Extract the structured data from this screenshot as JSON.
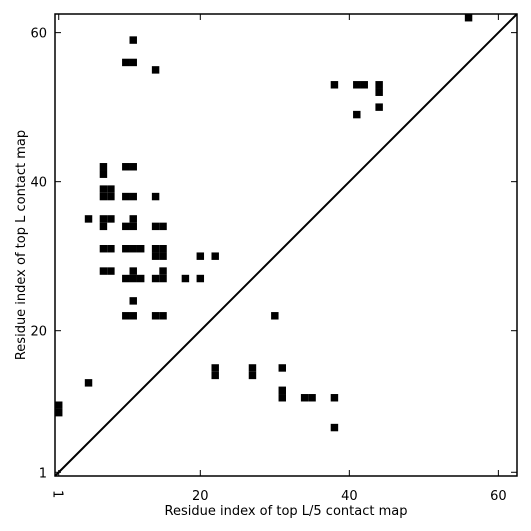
{
  "chart_data": {
    "type": "heatmap",
    "xlabel": "Residue index of top L/5 contact map",
    "ylabel": "Residue index of top L contact map",
    "xlim": [
      0.5,
      62.5
    ],
    "ylim": [
      0.5,
      62.5
    ],
    "x_ticks": [
      {
        "value": 1,
        "label": "1"
      },
      {
        "value": 20,
        "label": "20"
      },
      {
        "value": 40,
        "label": "40"
      },
      {
        "value": 60,
        "label": "60"
      }
    ],
    "y_ticks": [
      {
        "value": 1,
        "label": "1"
      },
      {
        "value": 20,
        "label": "20"
      },
      {
        "value": 40,
        "label": "40"
      },
      {
        "value": 60,
        "label": "60"
      }
    ],
    "diagonal_line": true,
    "grid": false,
    "cell_color": "#000000",
    "upper_triangle_cells": [
      [
        56,
        62
      ],
      [
        11,
        59
      ],
      [
        10,
        56
      ],
      [
        11,
        56
      ],
      [
        14,
        55
      ],
      [
        38,
        53
      ],
      [
        41,
        53
      ],
      [
        42,
        53
      ],
      [
        44,
        53
      ],
      [
        44,
        52
      ],
      [
        44,
        50
      ],
      [
        41,
        49
      ],
      [
        7,
        42
      ],
      [
        10,
        42
      ],
      [
        11,
        42
      ],
      [
        7,
        41
      ],
      [
        7,
        39
      ],
      [
        8,
        39
      ],
      [
        7,
        38
      ],
      [
        8,
        38
      ],
      [
        10,
        38
      ],
      [
        11,
        38
      ],
      [
        14,
        38
      ],
      [
        5,
        35
      ],
      [
        7,
        35
      ],
      [
        8,
        35
      ],
      [
        11,
        35
      ],
      [
        7,
        34
      ],
      [
        10,
        34
      ],
      [
        11,
        34
      ],
      [
        14,
        34
      ],
      [
        15,
        34
      ],
      [
        7,
        31
      ],
      [
        8,
        31
      ],
      [
        10,
        31
      ],
      [
        11,
        31
      ],
      [
        12,
        31
      ],
      [
        14,
        31
      ],
      [
        15,
        31
      ],
      [
        14,
        30
      ],
      [
        15,
        30
      ],
      [
        20,
        30
      ],
      [
        22,
        30
      ],
      [
        7,
        28
      ],
      [
        8,
        28
      ],
      [
        11,
        28
      ],
      [
        15,
        28
      ],
      [
        10,
        27
      ],
      [
        11,
        27
      ],
      [
        12,
        27
      ],
      [
        14,
        27
      ],
      [
        15,
        27
      ],
      [
        18,
        27
      ],
      [
        20,
        27
      ],
      [
        11,
        24
      ],
      [
        10,
        22
      ],
      [
        11,
        22
      ],
      [
        14,
        22
      ],
      [
        15,
        22
      ]
    ],
    "lower_triangle_cells": [
      [
        30,
        22
      ],
      [
        22,
        15
      ],
      [
        27,
        15
      ],
      [
        31,
        15
      ],
      [
        22,
        14
      ],
      [
        27,
        14
      ],
      [
        5,
        13
      ],
      [
        31,
        12
      ],
      [
        31,
        11
      ],
      [
        34,
        11
      ],
      [
        35,
        11
      ],
      [
        38,
        11
      ],
      [
        1,
        10
      ],
      [
        1,
        9
      ],
      [
        38,
        7
      ]
    ]
  }
}
